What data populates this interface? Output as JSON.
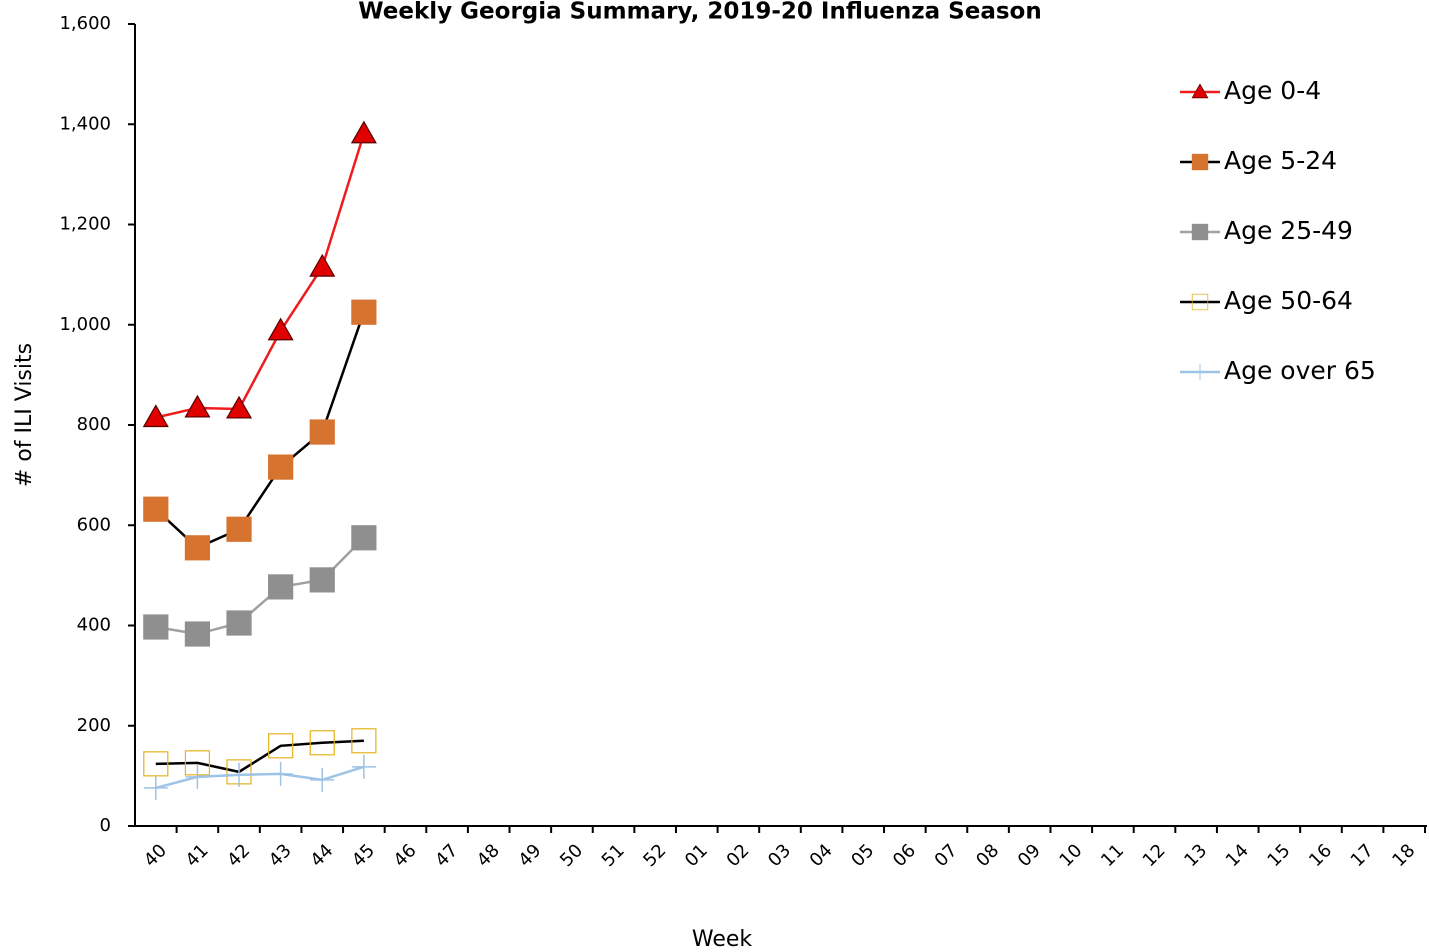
{
  "chart_data": {
    "type": "line",
    "title": "Weekly Georgia Summary, 2019-20 Influenza Season",
    "x_label": "Week",
    "y_label": "# of ILI Visits",
    "categories": [
      "40",
      "41",
      "42",
      "43",
      "44",
      "45",
      "46",
      "47",
      "48",
      "49",
      "50",
      "51",
      "52",
      "01",
      "02",
      "03",
      "04",
      "05",
      "06",
      "07",
      "08",
      "09",
      "10",
      "11",
      "12",
      "13",
      "14",
      "15",
      "16",
      "17",
      "18"
    ],
    "ylim": [
      0,
      1600
    ],
    "yticks": [
      0,
      200,
      400,
      600,
      800,
      {
        "value": 1000,
        "label": "1,000"
      },
      {
        "value": 1200,
        "label": "1,200"
      },
      {
        "value": 1400,
        "label": "1,400"
      },
      {
        "value": 1600,
        "label": "1,600"
      }
    ],
    "grid": false,
    "legend": "right",
    "series": [
      {
        "name": "Age 0-4",
        "color": "#ee1c1c",
        "marker": "triangle",
        "marker_color": "#e00000",
        "marker_edge": "#5a0000",
        "values": [
          815,
          834,
          832,
          988,
          1115,
          1381,
          null,
          null,
          null,
          null,
          null,
          null,
          null,
          null,
          null,
          null,
          null,
          null,
          null,
          null,
          null,
          null,
          null,
          null,
          null,
          null,
          null,
          null,
          null,
          null,
          null
        ]
      },
      {
        "name": "Age 5-24",
        "color": "#000000",
        "marker": "square",
        "marker_color": "#d6732f",
        "marker_edge": "#d6732f",
        "values": [
          632,
          555,
          592,
          716,
          786,
          1025,
          null,
          null,
          null,
          null,
          null,
          null,
          null,
          null,
          null,
          null,
          null,
          null,
          null,
          null,
          null,
          null,
          null,
          null,
          null,
          null,
          null,
          null,
          null,
          null,
          null
        ]
      },
      {
        "name": "Age 25-49",
        "color": "#a0a0a0",
        "marker": "square",
        "marker_color": "#8f8f8f",
        "marker_edge": "#8f8f8f",
        "values": [
          397,
          383,
          405,
          477,
          491,
          575,
          null,
          null,
          null,
          null,
          null,
          null,
          null,
          null,
          null,
          null,
          null,
          null,
          null,
          null,
          null,
          null,
          null,
          null,
          null,
          null,
          null,
          null,
          null,
          null,
          null
        ]
      },
      {
        "name": "Age 50-64",
        "color": "#000000",
        "marker": "hollow-square",
        "marker_color": "none",
        "marker_edge": "#e3b31c",
        "values": [
          124,
          126,
          108,
          160,
          166,
          170,
          null,
          null,
          null,
          null,
          null,
          null,
          null,
          null,
          null,
          null,
          null,
          null,
          null,
          null,
          null,
          null,
          null,
          null,
          null,
          null,
          null,
          null,
          null,
          null,
          null
        ]
      },
      {
        "name": "Age over 65",
        "color": "#9dc3e6",
        "marker": "plus",
        "marker_color": "#9dc3e6",
        "marker_edge": "#9dc3e6",
        "values": [
          76,
          98,
          102,
          104,
          92,
          118,
          null,
          null,
          null,
          null,
          null,
          null,
          null,
          null,
          null,
          null,
          null,
          null,
          null,
          null,
          null,
          null,
          null,
          null,
          null,
          null,
          null,
          null,
          null,
          null,
          null
        ]
      }
    ]
  }
}
